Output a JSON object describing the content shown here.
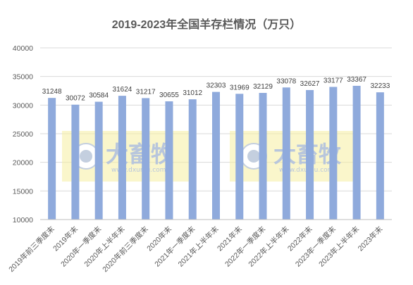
{
  "chart_data": {
    "type": "bar",
    "title": "2019-2023年全国羊存栏情况（万只）",
    "categories": [
      "2019年前三季度末",
      "2019年末",
      "2020年一季度末",
      "2020年上半年末",
      "2020年前三季度末",
      "2020年末",
      "2021年一季度末",
      "2021年上半年末",
      "2021年末",
      "2022年一季度末",
      "2022年上半年末",
      "2022年末",
      "2023年一季度末",
      "2023年上半年末",
      "2023年末"
    ],
    "values": [
      31248,
      30072,
      30584,
      31624,
      31217,
      30655,
      31012,
      32303,
      31969,
      32129,
      33078,
      32627,
      33177,
      33367,
      32233
    ],
    "ylim": [
      10000,
      40000
    ],
    "yticks": [
      10000,
      15000,
      20000,
      25000,
      30000,
      35000,
      40000
    ],
    "grid": true,
    "bar_color": "#8faadc",
    "xlabel": "",
    "ylabel": ""
  },
  "watermark": {
    "text": "大畜牧",
    "url": "www.dxumu.com"
  }
}
